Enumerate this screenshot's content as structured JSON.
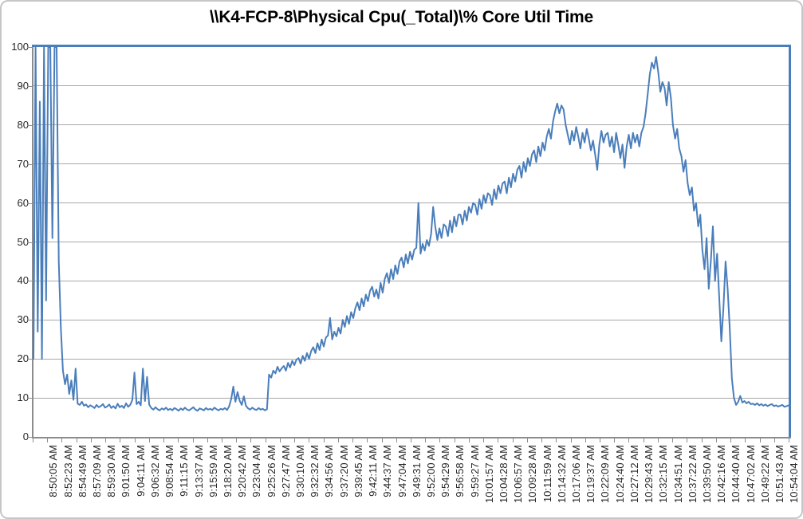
{
  "chart_data": {
    "type": "line",
    "title": "\\\\K4-FCP-8\\Physical Cpu(_Total)\\% Core Util Time",
    "xlabel": "",
    "ylabel": "",
    "ylim": [
      0,
      100
    ],
    "yticks": [
      0,
      10,
      20,
      30,
      40,
      50,
      60,
      70,
      80,
      90,
      100
    ],
    "grid": true,
    "legend": false,
    "series_name": "% Core Util Time",
    "colors": {
      "line": "#4A7EBB",
      "plot_border": "#4A7EBB",
      "gridline": "#A8A8A8",
      "axis": "#8C8C8C",
      "text": "#262626"
    },
    "x_labels": [
      "8:50:05 AM",
      "8:52:23 AM",
      "8:54:49 AM",
      "8:57:09 AM",
      "8:59:30 AM",
      "9:01:50 AM",
      "9:04:11 AM",
      "9:06:32 AM",
      "9:08:54 AM",
      "9:11:15 AM",
      "9:13:37 AM",
      "9:15:59 AM",
      "9:18:20 AM",
      "9:20:42 AM",
      "9:23:04 AM",
      "9:25:26 AM",
      "9:27:47 AM",
      "9:30:10 AM",
      "9:32:32 AM",
      "9:34:56 AM",
      "9:37:20 AM",
      "9:39:45 AM",
      "9:42:11 AM",
      "9:44:37 AM",
      "9:47:04 AM",
      "9:49:31 AM",
      "9:52:00 AM",
      "9:54:29 AM",
      "9:56:58 AM",
      "9:59:27 AM",
      "10:01:57 AM",
      "10:04:28 AM",
      "10:06:57 AM",
      "10:09:28 AM",
      "10:11:59 AM",
      "10:14:32 AM",
      "10:17:06 AM",
      "10:19:37 AM",
      "10:22:09 AM",
      "10:24:40 AM",
      "10:27:12 AM",
      "10:29:43 AM",
      "10:32:15 AM",
      "10:34:51 AM",
      "10:37:22 AM",
      "10:39:50 AM",
      "10:42:16 AM",
      "10:44:40 AM",
      "10:47:02 AM",
      "10:49:22 AM",
      "10:51:43 AM",
      "10:54:04 AM"
    ],
    "values": [
      20,
      100,
      27,
      86,
      20,
      100,
      35,
      100,
      100,
      51,
      100,
      100,
      45,
      28,
      17,
      13.5,
      16,
      11,
      14.5,
      9.5,
      17.5,
      8.5,
      8.2,
      9,
      8,
      8.3,
      7.6,
      8.1,
      7.8,
      7.4,
      8.2,
      7.6,
      7.9,
      8.4,
      7.5,
      7.8,
      8.3,
      7.4,
      7.9,
      7.3,
      8.5,
      7.6,
      8.0,
      7.4,
      8.6,
      7.7,
      8.2,
      9.5,
      16.5,
      8.4,
      9.0,
      8.1,
      17.5,
      9.2,
      15.4,
      8.3,
      7.4,
      7.0,
      7.6,
      7.1,
      6.8,
      7.3,
      7.0,
      7.5,
      6.9,
      7.2,
      6.8,
      7.4,
      7.1,
      6.7,
      7.3,
      6.9,
      7.5,
      7.0,
      6.8,
      7.2,
      7.6,
      7.0,
      6.7,
      7.3,
      7.1,
      6.8,
      7.4,
      7.0,
      7.2,
      6.9,
      7.5,
      7.1,
      6.8,
      7.2,
      7.0,
      7.4,
      6.9,
      7.8,
      9.8,
      12.9,
      9.0,
      11.5,
      9.3,
      8.2,
      10.4,
      8.0,
      7.3,
      7.0,
      7.5,
      7.1,
      6.9,
      7.4,
      7.0,
      7.2,
      6.8,
      7.1,
      16.0,
      15.2,
      17.0,
      16.3,
      18.0,
      16.8,
      17.6,
      18.2,
      17.0,
      19.0,
      17.8,
      19.5,
      18.4,
      19.8,
      20.2,
      18.8,
      20.8,
      19.5,
      21.5,
      20.0,
      22.0,
      23.0,
      21.5,
      24.0,
      22.3,
      25.0,
      23.2,
      25.5,
      26.0,
      30.5,
      25.0,
      27.0,
      25.8,
      28.0,
      26.5,
      30.0,
      28.2,
      31.0,
      29.0,
      32.0,
      30.5,
      33.0,
      34.5,
      32.5,
      35.5,
      33.5,
      36.5,
      34.8,
      37.5,
      38.5,
      36.0,
      37.8,
      35.5,
      39.5,
      37.0,
      40.5,
      42.0,
      39.5,
      43.0,
      40.5,
      44.0,
      41.8,
      45.0,
      46.0,
      43.5,
      46.8,
      44.5,
      47.5,
      45.5,
      48.0,
      48.5,
      60.0,
      47.0,
      49.5,
      47.8,
      50.5,
      49.0,
      52.0,
      59.0,
      54.0,
      50.5,
      53.5,
      51.0,
      54.5,
      54.0,
      51.5,
      55.5,
      52.5,
      56.5,
      54.0,
      57.0,
      57.0,
      54.5,
      58.0,
      55.5,
      59.0,
      57.5,
      60.0,
      59.5,
      57.0,
      61.0,
      58.5,
      62.0,
      60.0,
      62.5,
      62.0,
      59.5,
      63.5,
      61.0,
      64.5,
      62.5,
      65.0,
      65.5,
      62.5,
      66.5,
      64.0,
      67.5,
      65.5,
      68.5,
      69.5,
      66.5,
      70.5,
      68.0,
      71.5,
      69.5,
      72.5,
      73.5,
      70.5,
      74.5,
      72.0,
      75.5,
      73.5,
      77.0,
      79.0,
      76.5,
      81.0,
      83.5,
      85.5,
      83.0,
      85.0,
      84.0,
      80.0,
      77.5,
      75.0,
      78.5,
      76.0,
      79.5,
      77.0,
      74.0,
      78.0,
      75.5,
      79.0,
      76.5,
      73.5,
      76.0,
      72.5,
      68.5,
      75.0,
      78.5,
      75.5,
      77.5,
      78.0,
      74.5,
      77.0,
      73.0,
      78.0,
      75.0,
      71.5,
      75.0,
      69.0,
      74.5,
      77.5,
      74.0,
      78.0,
      75.5,
      77.5,
      74.5,
      78.0,
      79.5,
      83.0,
      88.0,
      93.0,
      96.0,
      94.5,
      97.5,
      93.5,
      88.5,
      91.0,
      89.5,
      85.0,
      91.0,
      87.0,
      80.0,
      76.5,
      79.0,
      74.0,
      72.0,
      68.0,
      71.0,
      65.0,
      62.0,
      64.0,
      58.0,
      60.0,
      54.0,
      57.0,
      48.0,
      43.0,
      51.0,
      38.0,
      45.0,
      54.0,
      40.0,
      47.0,
      36.0,
      24.5,
      33.0,
      45.0,
      38.0,
      28.0,
      15.0,
      10.0,
      8.2,
      9.0,
      10.5,
      8.8,
      9.2,
      8.6,
      9.0,
      8.4,
      8.5,
      8.2,
      8.6,
      8.1,
      8.4,
      8.0,
      8.3,
      7.9,
      8.2,
      8.4,
      7.9,
      8.1,
      7.8,
      8.0,
      8.2,
      7.7,
      7.9,
      8.1
    ]
  }
}
